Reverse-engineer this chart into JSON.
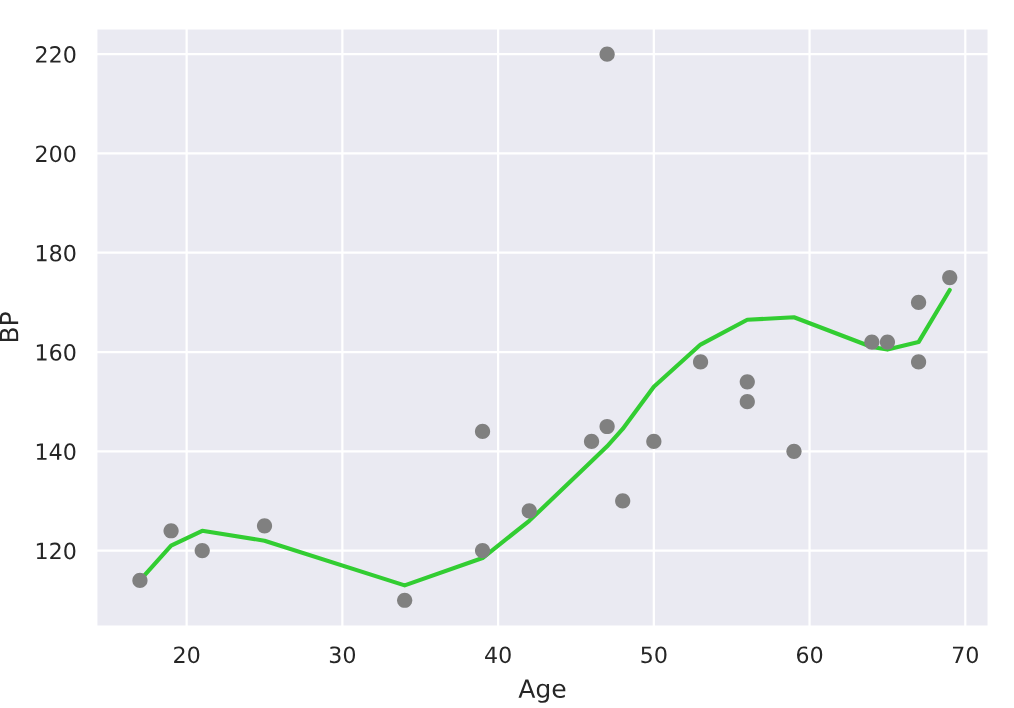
{
  "chart_data": {
    "type": "scatter",
    "xlabel": "Age",
    "ylabel": "BP",
    "xlim": [
      14.2,
      71.5
    ],
    "xticks": [
      20,
      30,
      40,
      50,
      60,
      70
    ],
    "ylim": [
      104.7,
      225.2
    ],
    "yticks": [
      120,
      140,
      160,
      180,
      200,
      220
    ],
    "grid": true,
    "series": [
      {
        "marker": "circle",
        "color": "#808080",
        "x": [
          17,
          19,
          21,
          25,
          34,
          39,
          39,
          42,
          46,
          47,
          47,
          48,
          50,
          53,
          56,
          56,
          59,
          64,
          65,
          67,
          67,
          69
        ],
        "values": [
          114,
          124,
          120,
          125,
          110,
          144,
          120,
          128,
          142,
          145,
          220,
          130,
          142,
          158,
          154,
          150,
          140,
          162,
          162,
          170,
          158,
          175
        ]
      },
      {
        "type": "line",
        "color": "#32cd32",
        "line_style": "solid",
        "x": [
          17,
          19,
          21,
          25,
          34,
          39,
          42,
          46,
          47,
          48,
          50,
          53,
          56,
          59,
          64,
          65,
          67,
          69
        ],
        "values": [
          114,
          121,
          124,
          122,
          113,
          118.5,
          126,
          138,
          141,
          144.5,
          153,
          161.5,
          166.5,
          167,
          161,
          160.5,
          162,
          172.5
        ]
      }
    ]
  }
}
